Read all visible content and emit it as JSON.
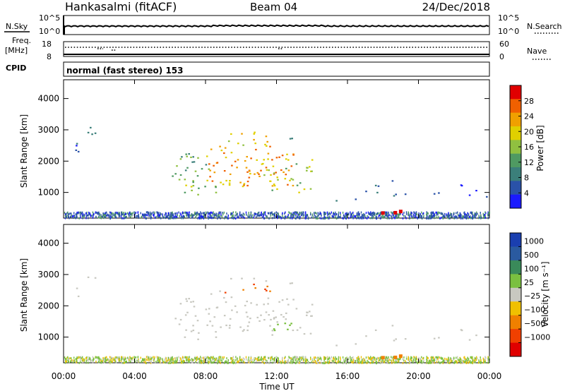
{
  "header": {
    "station": "Hankasalmi (fitACF)",
    "beam": "Beam 04",
    "date": "24/Dec/2018"
  },
  "noise_panel": {
    "left_label": "N.Sky",
    "left_ticks": [
      "10^5",
      "10^0"
    ],
    "right_label": "N.Search",
    "right_ticks": [
      "10^5",
      "10^0"
    ]
  },
  "freq_panel": {
    "left_label_1": "Freq.",
    "left_label_2": "[MHz]",
    "left_ticks": [
      "18",
      "8"
    ],
    "right_label": "Nave",
    "right_ticks": [
      "60",
      "0"
    ]
  },
  "cpid": {
    "label": "CPID",
    "text": "normal (fast stereo) 153"
  },
  "x_axis": {
    "title": "Time UT",
    "ticks": [
      "00:00",
      "04:00",
      "08:00",
      "12:00",
      "16:00",
      "20:00",
      "00:00"
    ]
  },
  "colors": {
    "power_scale": [
      "#1a1aff",
      "#2a52a8",
      "#3b7f7a",
      "#4f9a62",
      "#90c040",
      "#e0d000",
      "#f0a000",
      "#f06000",
      "#e00000"
    ],
    "velocity_scale": [
      "#1a3fb0",
      "#2a5aa0",
      "#3a8a5a",
      "#7ac040",
      "#c8c8c0",
      "#f0c000",
      "#f08000",
      "#f04000",
      "#e00000"
    ]
  },
  "chart_data": [
    {
      "type": "heatmap",
      "title": "",
      "ylabel": "Slant Range [km]",
      "xlabel": "",
      "x_ticks": [
        "00:00",
        "04:00",
        "08:00",
        "12:00",
        "16:00",
        "20:00",
        "00:00"
      ],
      "y_ticks": [
        1000,
        2000,
        3000,
        4000
      ],
      "xlim": [
        0,
        24
      ],
      "ylim": [
        180,
        4600
      ],
      "colorbar": {
        "label": "Power [dB]",
        "ticks": [
          4,
          8,
          12,
          16,
          20,
          24,
          28
        ],
        "range": [
          0,
          32
        ]
      }
    },
    {
      "type": "heatmap",
      "title": "",
      "ylabel": "Slant Range [km]",
      "xlabel": "Time UT",
      "x_ticks": [
        "00:00",
        "04:00",
        "08:00",
        "12:00",
        "16:00",
        "20:00",
        "00:00"
      ],
      "y_ticks": [
        1000,
        2000,
        3000,
        4000
      ],
      "xlim": [
        0,
        24
      ],
      "ylim": [
        180,
        4600
      ],
      "colorbar": {
        "label": "Velocity [m s⁻¹]",
        "ticks": [
          "1000",
          "500",
          "100",
          "25",
          "−25",
          "−100",
          "−500",
          "−1000"
        ]
      }
    }
  ]
}
